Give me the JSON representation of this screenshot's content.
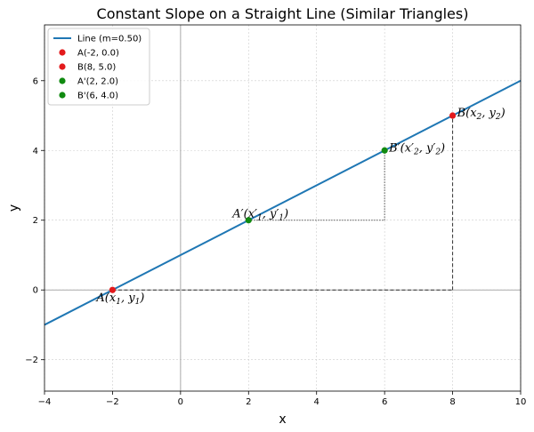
{
  "chart_data": {
    "type": "line",
    "title": "Constant Slope on a Straight Line (Similar Triangles)",
    "xlabel": "x",
    "ylabel": "y",
    "xlim": [
      -4,
      10
    ],
    "ylim": [
      -2.9,
      7.6
    ],
    "xticks": [
      -4,
      -2,
      0,
      2,
      4,
      6,
      8,
      10
    ],
    "yticks": [
      -2,
      0,
      2,
      4,
      6
    ],
    "xtick_labels": [
      "−4",
      "−2",
      "0",
      "2",
      "4",
      "6",
      "8",
      "10"
    ],
    "ytick_labels": [
      "−2",
      "0",
      "2",
      "4",
      "6"
    ],
    "grid": true,
    "legend_position": "top-left",
    "line": {
      "name": "Line (m=0.50)",
      "color": "#1f77b4",
      "x": [
        -4,
        10
      ],
      "y": [
        -1.0,
        6.0
      ]
    },
    "points": [
      {
        "name": "A(-2, 0.0)",
        "x": -2,
        "y": 0.0,
        "color": "#e31a1c"
      },
      {
        "name": "B(8, 5.0)",
        "x": 8,
        "y": 5.0,
        "color": "#e31a1c"
      },
      {
        "name": "A'(2, 2.0)",
        "x": 2,
        "y": 2.0,
        "color": "#108a10"
      },
      {
        "name": "B'(6, 4.0)",
        "x": 6,
        "y": 4.0,
        "color": "#108a10"
      }
    ],
    "triangles": [
      {
        "name": "large",
        "style": "dashed",
        "from": [
          -2,
          0
        ],
        "corner": [
          8,
          0
        ],
        "to": [
          8,
          5
        ]
      },
      {
        "name": "small",
        "style": "dotted",
        "from": [
          2,
          2
        ],
        "corner": [
          6,
          2
        ],
        "to": [
          6,
          4
        ]
      }
    ],
    "reference_lines": {
      "x0": true,
      "y0": true
    },
    "annotations": [
      {
        "id": "A",
        "x": -2,
        "y": 0.0,
        "anchor": "below",
        "parts": [
          [
            "A(x",
            ""
          ],
          [
            "1",
            "sub"
          ],
          [
            ", y",
            ""
          ],
          [
            "1",
            "sub"
          ],
          [
            ")",
            ""
          ]
        ]
      },
      {
        "id": "B",
        "x": 8,
        "y": 5.0,
        "anchor": "right",
        "parts": [
          [
            "B(x",
            ""
          ],
          [
            "2",
            "sub"
          ],
          [
            ", y",
            ""
          ],
          [
            "2",
            "sub"
          ],
          [
            ")",
            ""
          ]
        ]
      },
      {
        "id": "A_prime",
        "x": 2,
        "y": 2.0,
        "anchor": "above",
        "parts": [
          [
            "A′(x′",
            ""
          ],
          [
            "1",
            "sub"
          ],
          [
            ", y′",
            ""
          ],
          [
            "1",
            "sub"
          ],
          [
            ")",
            ""
          ]
        ]
      },
      {
        "id": "B_prime",
        "x": 6,
        "y": 4.0,
        "anchor": "right",
        "parts": [
          [
            "B′(x′",
            ""
          ],
          [
            "2",
            "sub"
          ],
          [
            ", y′",
            ""
          ],
          [
            "2",
            "sub"
          ],
          [
            ")",
            ""
          ]
        ]
      }
    ]
  }
}
